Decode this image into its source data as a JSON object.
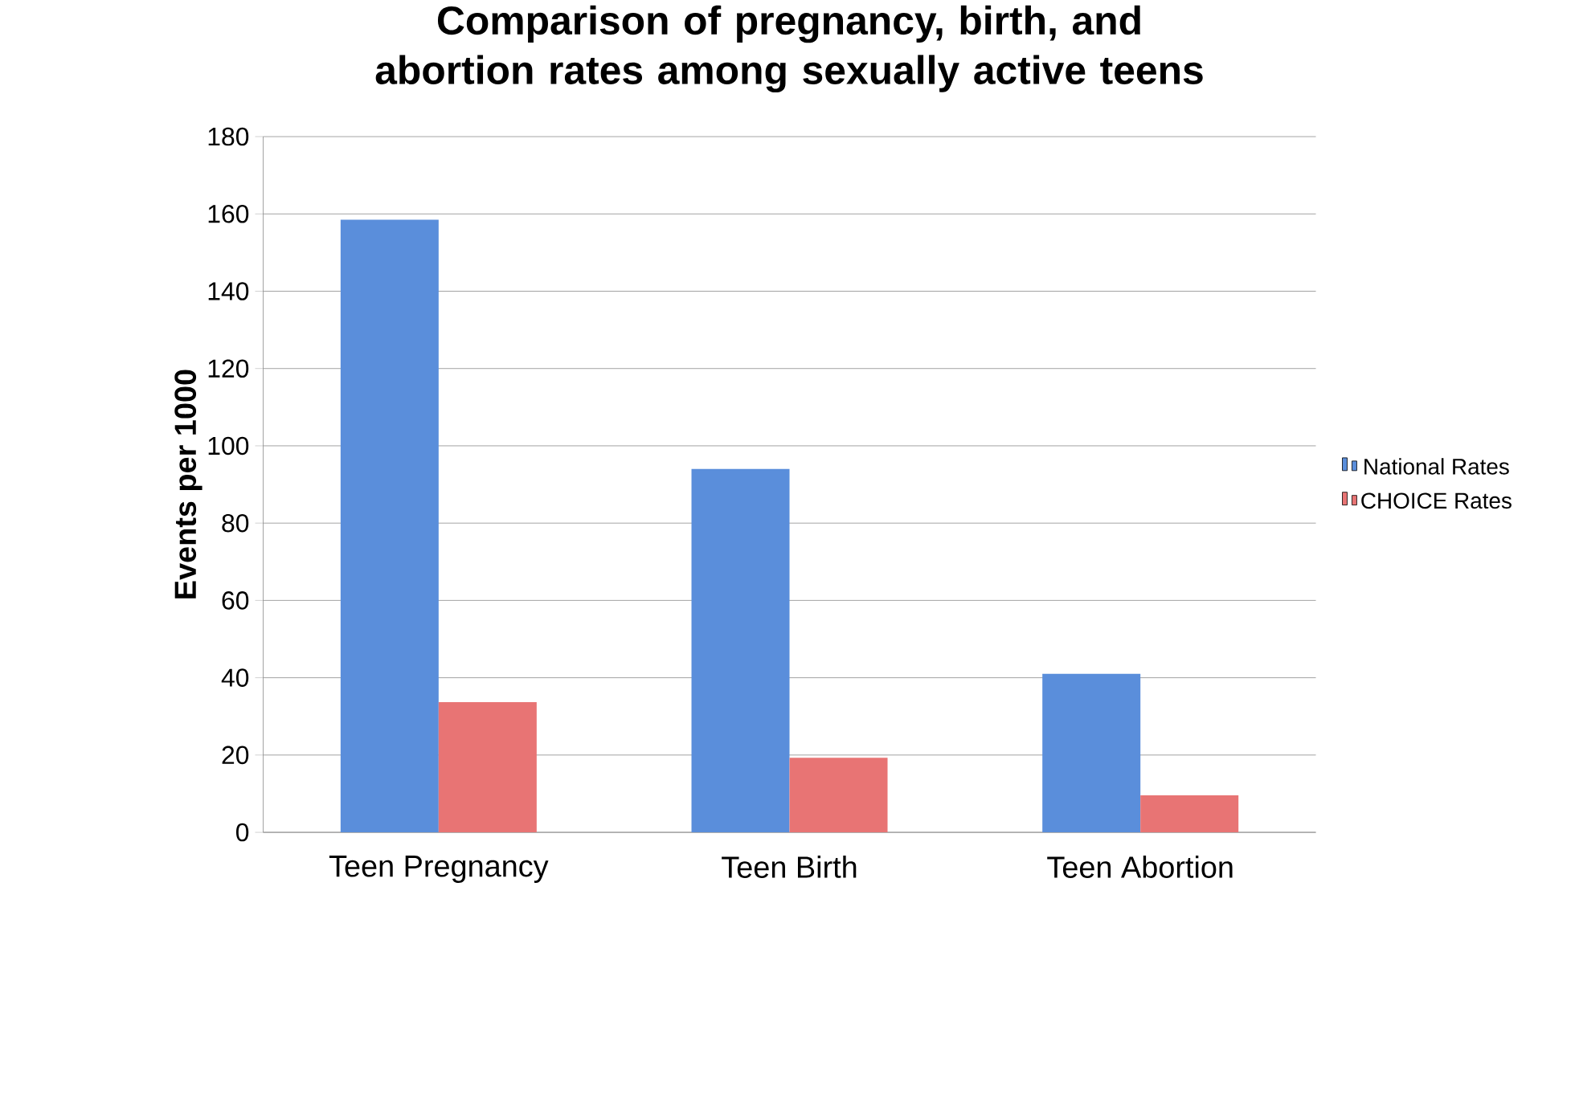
{
  "chart_data": {
    "type": "bar",
    "title": "Comparison of pregnancy, birth, and abortion rates among sexually active teens",
    "ylabel": "Events per 1000",
    "categories": [
      "Teen Pregnancy",
      "Teen Birth",
      "Teen Abortion"
    ],
    "series": [
      {
        "name": "National Rates",
        "color": "#5a8edb",
        "values": [
          158.5,
          94,
          41
        ]
      },
      {
        "name": "CHOICE Rates",
        "color": "#e87474",
        "values": [
          33.7,
          19.3,
          9.6
        ]
      }
    ],
    "ylim": [
      0,
      180
    ],
    "yticks": [
      0,
      20,
      40,
      60,
      80,
      100,
      120,
      140,
      160,
      180
    ],
    "grid": "y",
    "legend": "right"
  }
}
